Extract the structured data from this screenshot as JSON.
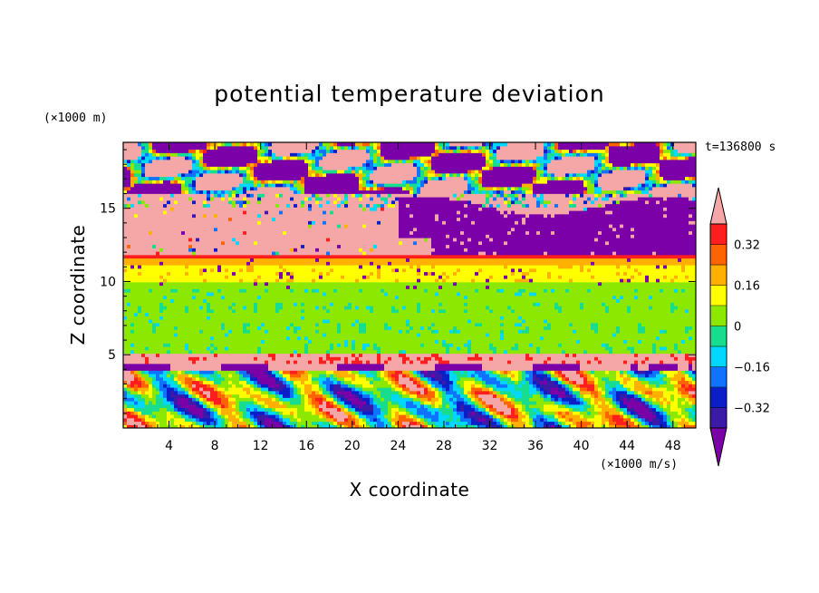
{
  "chart_data": {
    "type": "heatmap",
    "title": "potential temperature deviation",
    "xlabel": "X coordinate",
    "ylabel": "Z coordinate",
    "x_unit": "(×1000 m/s)",
    "y_unit": "(×1000 m)",
    "time_label": "t=136800 s",
    "xlim": [
      0,
      50
    ],
    "ylim": [
      0,
      19.5
    ],
    "x_ticks": [
      4,
      8,
      12,
      16,
      20,
      24,
      28,
      32,
      36,
      40,
      44,
      48
    ],
    "y_ticks": [
      5,
      10,
      15
    ],
    "colorbar": {
      "levels": [
        -0.4,
        -0.32,
        -0.24,
        -0.16,
        -0.08,
        0,
        0.08,
        0.16,
        0.24,
        0.32,
        0.4
      ],
      "tick_values": [
        -0.32,
        -0.16,
        0,
        0.16,
        0.32
      ],
      "tick_labels": [
        "−0.32",
        "−0.16",
        "0",
        "0.16",
        "0.32"
      ],
      "colors": [
        "#7b00a8",
        "#3a1aa6",
        "#0a1fc8",
        "#0f73ff",
        "#00d8ff",
        "#18dd8e",
        "#8ce800",
        "#ffff00",
        "#ffb000",
        "#ff6400",
        "#ff1e1e",
        "#f5a6a6"
      ],
      "extend": "both"
    },
    "bands": [
      {
        "z": [
          0,
          4
        ],
        "pattern": "turbulent mix of all levels"
      },
      {
        "z": [
          4,
          5
        ],
        "value_range": "<-0.4 to >0.4",
        "pattern": "alternating purple and pink"
      },
      {
        "z": [
          5,
          9.5
        ],
        "value_range": "0 to 0.08",
        "pattern": "green with teal streaks"
      },
      {
        "z": [
          9.5,
          11.5
        ],
        "value_range": "0.08 to 0.24",
        "pattern": "yellow with scattered purple"
      },
      {
        "z": [
          11.5,
          16
        ],
        "value": ">0.4",
        "pattern": "pink layer with purple intrusion on right"
      },
      {
        "z": [
          16,
          19.5
        ],
        "pattern": "alternating purple and pink streamers"
      }
    ]
  }
}
